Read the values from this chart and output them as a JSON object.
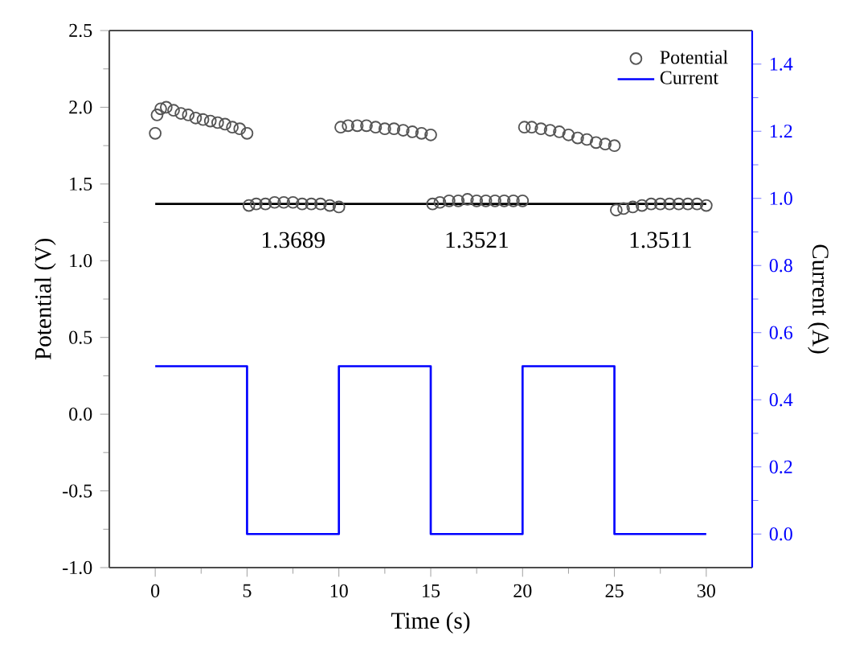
{
  "chart_data": {
    "type": "scatter",
    "xlabel": "Time (s)",
    "ylabel": "Potential (V)",
    "y2label": "Current (A)",
    "xlim": [
      -2.5,
      32.5
    ],
    "xticks": [
      0,
      5,
      10,
      15,
      20,
      25,
      30
    ],
    "ylim": [
      -1.0,
      2.5
    ],
    "yticks": [
      {
        "value": -1,
        "label": "-1.0"
      },
      {
        "value": -0.5,
        "label": "-0.5"
      },
      {
        "value": 0,
        "label": "0.0"
      },
      {
        "value": 0.5,
        "label": "0.5"
      },
      {
        "value": 1,
        "label": "1.0"
      },
      {
        "value": 1.5,
        "label": "1.5"
      },
      {
        "value": 2,
        "label": "2.0"
      },
      {
        "value": 2.5,
        "label": "2.5"
      }
    ],
    "y2lim": [
      -0.1,
      1.5
    ],
    "y2ticks": [
      {
        "value": 0,
        "label": "0.0"
      },
      {
        "value": 0.2,
        "label": "0.2"
      },
      {
        "value": 0.4,
        "label": "0.4"
      },
      {
        "value": 0.6,
        "label": "0.6"
      },
      {
        "value": 0.8,
        "label": "0.8"
      },
      {
        "value": 1,
        "label": "1.0"
      },
      {
        "value": 1.2,
        "label": "1.2"
      },
      {
        "value": 1.4,
        "label": "1.4"
      }
    ],
    "legend": "top right",
    "series": [
      {
        "name": "Potential",
        "marker": "circle",
        "color": "#555555",
        "x": [
          0,
          0.1,
          0.3,
          0.6,
          1,
          1.4,
          1.8,
          2.2,
          2.6,
          3,
          3.4,
          3.8,
          4.2,
          4.6,
          5.0,
          5.1,
          5.5,
          6,
          6.5,
          7,
          7.5,
          8,
          8.5,
          9,
          9.5,
          10.0,
          10.1,
          10.5,
          11,
          11.5,
          12,
          12.5,
          13,
          13.5,
          14,
          14.5,
          15,
          15.1,
          15.5,
          16,
          16.5,
          17,
          17.5,
          18,
          18.5,
          19,
          19.5,
          20,
          20.1,
          20.5,
          21,
          21.5,
          22,
          22.5,
          23,
          23.5,
          24,
          24.5,
          25,
          25.1,
          25.5,
          26,
          26.5,
          27,
          27.5,
          28,
          28.5,
          29,
          29.5,
          30
        ],
        "values": [
          1.83,
          1.95,
          1.99,
          2.0,
          1.98,
          1.96,
          1.95,
          1.93,
          1.92,
          1.91,
          1.9,
          1.89,
          1.87,
          1.86,
          1.83,
          1.36,
          1.37,
          1.37,
          1.38,
          1.38,
          1.38,
          1.37,
          1.37,
          1.37,
          1.36,
          1.35,
          1.87,
          1.88,
          1.88,
          1.88,
          1.87,
          1.86,
          1.86,
          1.85,
          1.84,
          1.83,
          1.82,
          1.37,
          1.38,
          1.39,
          1.39,
          1.4,
          1.39,
          1.39,
          1.39,
          1.39,
          1.39,
          1.39,
          1.87,
          1.87,
          1.86,
          1.85,
          1.84,
          1.82,
          1.8,
          1.79,
          1.77,
          1.76,
          1.75,
          1.33,
          1.34,
          1.35,
          1.36,
          1.37,
          1.37,
          1.37,
          1.37,
          1.37,
          1.37,
          1.36
        ]
      },
      {
        "type": "line",
        "color": "#000000",
        "x": [
          0,
          30
        ],
        "values": [
          1.37,
          1.37
        ]
      },
      {
        "name": "Current",
        "type": "line",
        "axis": "y2",
        "color": "#0000ff",
        "x": [
          0,
          5,
          5,
          10,
          10,
          15,
          15,
          20,
          20,
          25,
          25,
          30
        ],
        "values": [
          0.5,
          0.5,
          0,
          0,
          0.5,
          0.5,
          0,
          0,
          0.5,
          0.5,
          0,
          0
        ]
      }
    ],
    "annotations": [
      "1.3689",
      "1.3521",
      "1.3511"
    ]
  }
}
